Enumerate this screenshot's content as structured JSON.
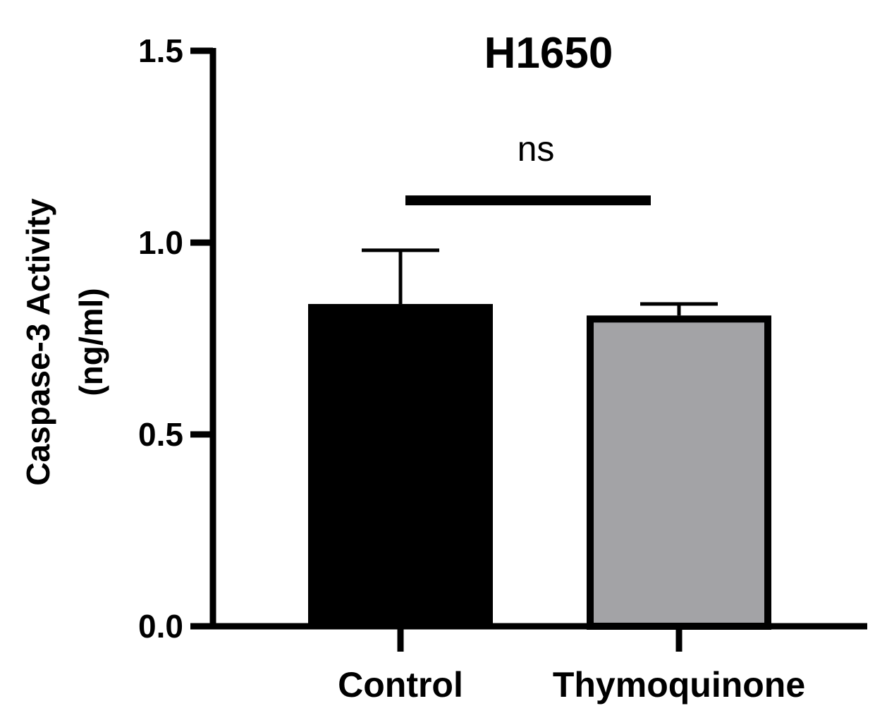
{
  "chart_data": {
    "type": "bar",
    "title": "H1650",
    "ylabel_line1": "Caspase-3 Activity",
    "ylabel_line2": "(ng/ml)",
    "xlabel": "",
    "categories": [
      "Control",
      "Thymoquinone"
    ],
    "values": [
      0.84,
      0.81
    ],
    "errors": [
      0.14,
      0.03
    ],
    "bar_colors": [
      "#000000",
      "#a3a3a6"
    ],
    "ylim": [
      0,
      1.5
    ],
    "yticks": [
      "0.0",
      "0.5",
      "1.0",
      "1.5"
    ],
    "ytick_values": [
      0,
      0.5,
      1.0,
      1.5
    ],
    "grid": false,
    "annotation": {
      "text": "ns",
      "y": 1.11
    }
  }
}
